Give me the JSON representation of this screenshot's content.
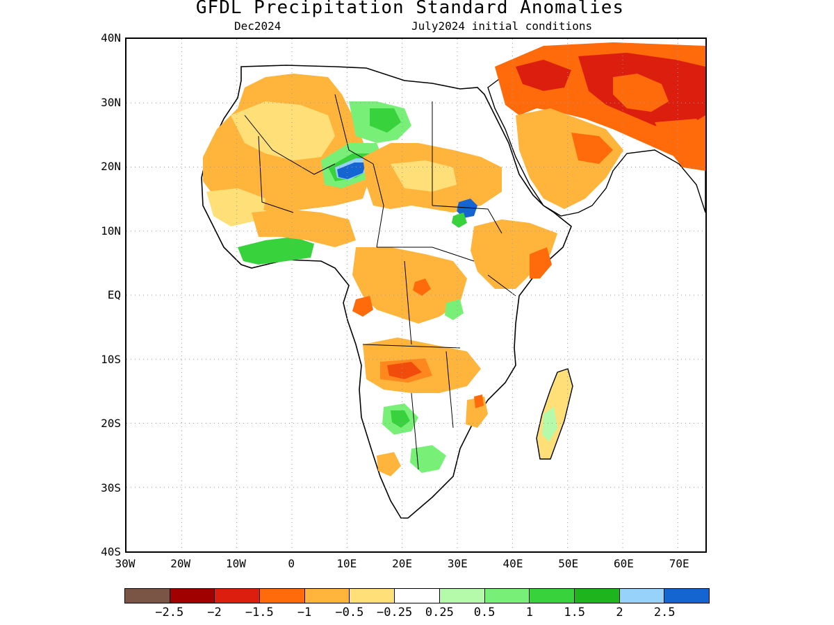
{
  "title": "GFDL Precipitation Standard Anomalies",
  "subtitle_left": "Dec2024",
  "subtitle_right": "July2024 initial conditions",
  "lat_labels": [
    "40N",
    "30N",
    "20N",
    "10N",
    "EQ",
    "10S",
    "20S",
    "30S",
    "40S"
  ],
  "lon_labels": [
    "30W",
    "20W",
    "10W",
    "0",
    "10E",
    "20E",
    "30E",
    "40E",
    "50E",
    "60E",
    "70E"
  ],
  "colorbar": {
    "colors": [
      "#7a5444",
      "#a00000",
      "#dc1e0e",
      "#ff6a0a",
      "#ffb43c",
      "#ffe078",
      "#ffffff",
      "#b4faaa",
      "#78f078",
      "#37d23c",
      "#1eb41e",
      "#96d2fa",
      "#1464d2"
    ],
    "labels": [
      "-2.5",
      "-2",
      "-1.5",
      "-1",
      "-0.5",
      "-0.25",
      "0.25",
      "0.5",
      "1",
      "1.5",
      "2",
      "2.5"
    ]
  },
  "legend_colors": {
    "land_outline": "#000000",
    "ocean": "#ffffff",
    "grid": "#999999"
  }
}
